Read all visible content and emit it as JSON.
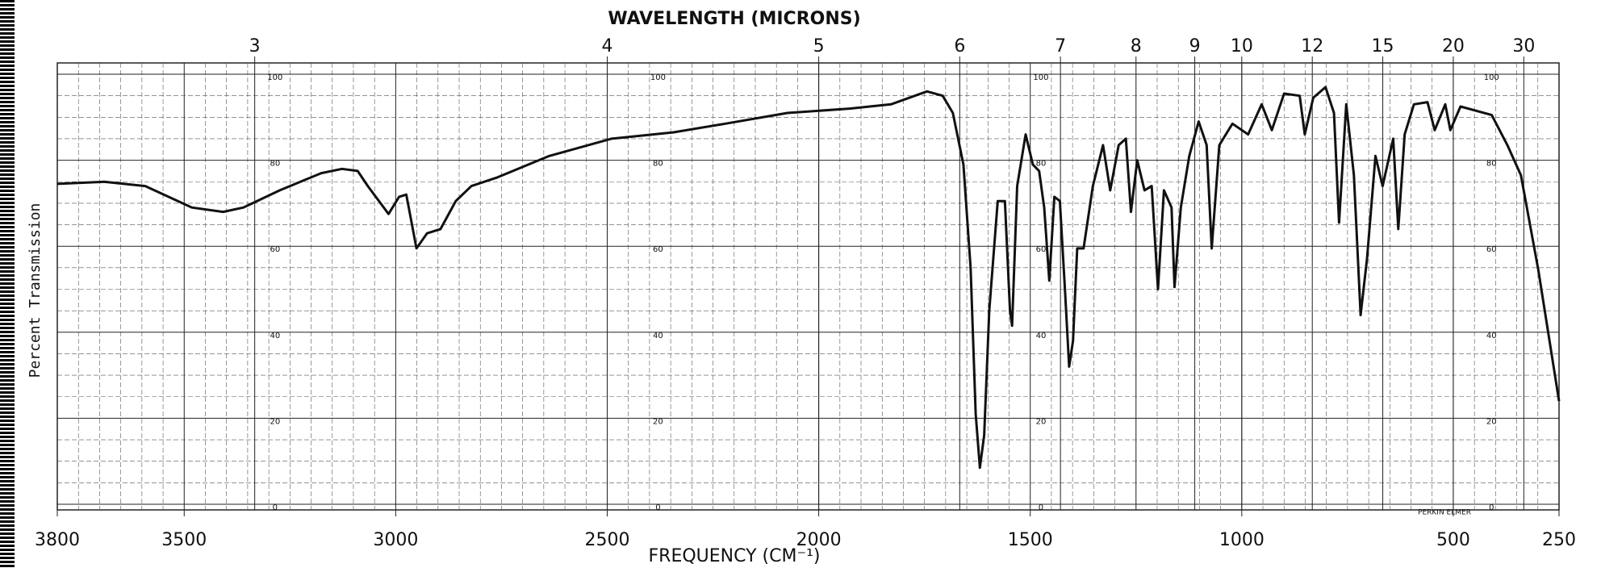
{
  "chart_data": {
    "type": "line",
    "x2label": "WAVELENGTH (MICRONS)",
    "xlabel": "FREQUENCY (CM⁻¹)",
    "ylabel": "Percent Transmission",
    "annotation": "PERKIN ELMER",
    "color": "#111111",
    "grid": true,
    "xlim": [
      3800,
      250
    ],
    "xticks": [
      3800,
      3500,
      3000,
      2500,
      2000,
      1500,
      1000,
      500,
      250
    ],
    "x2ticks": [
      {
        "value": 3333.3,
        "label": "3"
      },
      {
        "value": 2500,
        "label": "4"
      },
      {
        "value": 2000,
        "label": "5"
      },
      {
        "value": 1666.7,
        "label": "6"
      },
      {
        "value": 1428.6,
        "label": "7"
      },
      {
        "value": 1250,
        "label": "8"
      },
      {
        "value": 1111.1,
        "label": "9"
      },
      {
        "value": 1000,
        "label": "10"
      },
      {
        "value": 833.3,
        "label": "12"
      },
      {
        "value": 666.7,
        "label": "15"
      },
      {
        "value": 500,
        "label": "20"
      },
      {
        "value": 333.3,
        "label": "30"
      }
    ],
    "ylim": [
      0,
      100
    ],
    "yticks": [
      0,
      20,
      40,
      60,
      80,
      100
    ],
    "x": [
      3800,
      3690,
      3592,
      3482,
      3408,
      3360,
      3274,
      3176,
      3127,
      3090,
      3066,
      3017,
      2992,
      2975,
      2951,
      2926,
      2894,
      2858,
      2821,
      2760,
      2637,
      2490,
      2343,
      2221,
      2074,
      1927,
      1829,
      1744,
      1707,
      1683,
      1658,
      1641,
      1629,
      1619,
      1609,
      1597,
      1577,
      1560,
      1548,
      1543,
      1531,
      1511,
      1494,
      1479,
      1467,
      1455,
      1443,
      1430,
      1418,
      1408,
      1399,
      1389,
      1374,
      1352,
      1328,
      1311,
      1291,
      1274,
      1262,
      1247,
      1230,
      1213,
      1198,
      1184,
      1166,
      1159,
      1144,
      1124,
      1102,
      1083,
      1071,
      1053,
      1022,
      985,
      953,
      929,
      900,
      863,
      851,
      831,
      802,
      782,
      770,
      753,
      735,
      719,
      704,
      684,
      667,
      642,
      630,
      615,
      593,
      561,
      544,
      519,
      507,
      483,
      409,
      372,
      340,
      299,
      250
    ],
    "values": [
      74.5,
      75,
      74,
      69,
      68,
      69,
      73,
      77,
      78,
      77.5,
      74,
      67.5,
      71.5,
      72,
      59.5,
      63,
      64,
      70.5,
      74,
      76,
      81,
      85,
      86.5,
      88.5,
      91,
      92,
      93,
      96,
      95,
      91,
      79,
      55,
      21,
      8.5,
      16,
      45,
      70.5,
      70.5,
      45,
      41.5,
      74,
      86,
      79,
      77.5,
      69,
      52,
      71.5,
      70.5,
      50,
      32,
      38,
      59.5,
      59.5,
      74,
      83.5,
      73,
      83.5,
      85,
      68,
      80,
      73,
      74,
      50,
      73,
      69,
      50.5,
      69,
      81,
      89,
      83.5,
      59.5,
      83.5,
      88.5,
      86,
      93,
      87,
      95.5,
      95,
      86,
      94.5,
      97,
      91,
      65.5,
      93,
      76.5,
      44,
      57,
      81,
      74,
      85,
      64,
      86,
      93,
      93.5,
      87,
      93,
      87,
      92.5,
      90.5,
      83.5,
      76.5,
      54.5,
      24
    ]
  }
}
